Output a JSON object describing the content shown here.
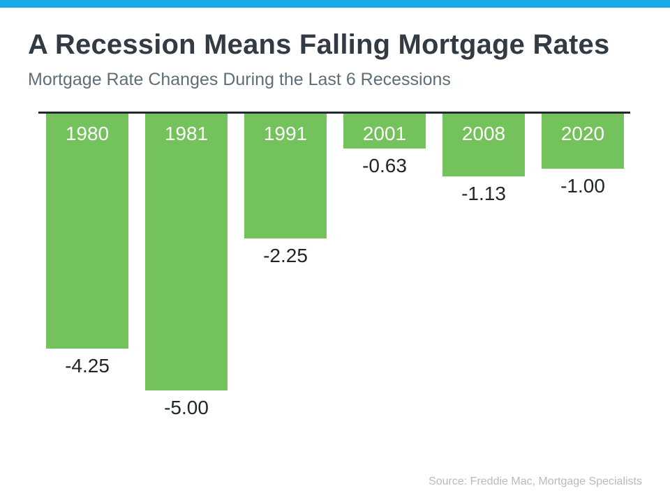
{
  "header": {
    "title": "A Recession Means Falling Mortgage Rates",
    "subtitle": "Mortgage Rate Changes During the Last 6 Recessions"
  },
  "chart_data": {
    "type": "bar",
    "title": "A Recession Means Falling Mortgage Rates",
    "subtitle": "Mortgage Rate Changes During the Last 6 Recessions",
    "categories": [
      "1980",
      "1981",
      "1991",
      "2001",
      "2008",
      "2020"
    ],
    "values": [
      -4.25,
      -5.0,
      -2.25,
      -0.63,
      -1.13,
      -1.0
    ],
    "value_labels": [
      "-4.25",
      "-5.00",
      "-2.25",
      "-0.63",
      "-1.13",
      "-1.00"
    ],
    "xlabel": "",
    "ylabel": "",
    "ylim": [
      -5.5,
      0
    ],
    "baseline": 0,
    "orientation": "vertical-bars-extending-downward-from-zero",
    "grid": false,
    "legend_position": "none",
    "bar_color": "#74C25C",
    "bar_label_color": "#FFFFFF",
    "value_label_color": "#20252C",
    "baseline_color": "#23282E"
  },
  "footer": {
    "source_text": "Source: Freddie Mac, Mortgage Specialists"
  },
  "colors": {
    "top_strip": "#17A9EA",
    "title": "#323A44",
    "subtitle": "#5E6E78"
  }
}
